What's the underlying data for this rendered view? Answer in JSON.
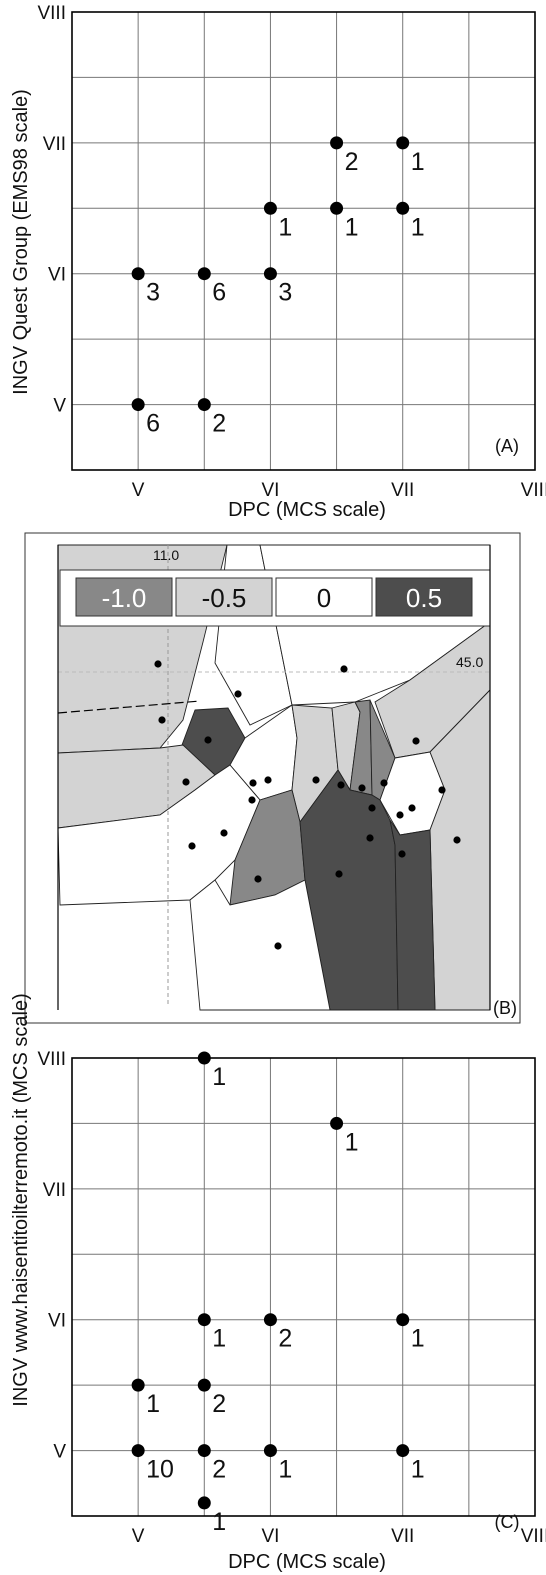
{
  "chart_data": [
    {
      "id": "A",
      "type": "scatter",
      "panel_label": "(A)",
      "xlabel": "DPC (MCS scale)",
      "ylabel": "INGV Quest Group (EMS98 scale)",
      "xlim": [
        4.5,
        8.0
      ],
      "ylim": [
        4.5,
        8.0
      ],
      "xticks": [
        {
          "v": 5,
          "label": "V"
        },
        {
          "v": 6,
          "label": "VI"
        },
        {
          "v": 7,
          "label": "VII"
        },
        {
          "v": 8,
          "label": "VIII"
        }
      ],
      "yticks": [
        {
          "v": 5,
          "label": "V"
        },
        {
          "v": 6,
          "label": "VI"
        },
        {
          "v": 7,
          "label": "VII"
        },
        {
          "v": 8,
          "label": "VIII"
        }
      ],
      "grid": true,
      "points": [
        {
          "x": 5.0,
          "y": 5.0,
          "n": "6"
        },
        {
          "x": 5.5,
          "y": 5.0,
          "n": "2"
        },
        {
          "x": 5.0,
          "y": 6.0,
          "n": "3"
        },
        {
          "x": 5.5,
          "y": 6.0,
          "n": "6"
        },
        {
          "x": 6.0,
          "y": 6.0,
          "n": "3"
        },
        {
          "x": 6.0,
          "y": 6.5,
          "n": "1"
        },
        {
          "x": 6.5,
          "y": 6.5,
          "n": "1"
        },
        {
          "x": 7.0,
          "y": 6.5,
          "n": "1"
        },
        {
          "x": 6.5,
          "y": 7.0,
          "n": "2"
        },
        {
          "x": 7.0,
          "y": 7.0,
          "n": "1"
        }
      ]
    },
    {
      "id": "B",
      "type": "map",
      "panel_label": "(B)",
      "legend": [
        {
          "label": "-1.0",
          "color": "#888888",
          "text_color": "#ffffff"
        },
        {
          "label": "-0.5",
          "color": "#d3d3d3",
          "text_color": "#111111"
        },
        {
          "label": "0",
          "color": "#ffffff",
          "text_color": "#111111"
        },
        {
          "label": "0.5",
          "color": "#4d4d4d",
          "text_color": "#ffffff"
        }
      ],
      "graticule_labels": {
        "longitude": "11.0",
        "latitude": "45.0"
      },
      "colors": {
        "light": "#d3d3d3",
        "dark": "#4d4d4d",
        "mid": "#888888",
        "white": "#ffffff"
      }
    },
    {
      "id": "C",
      "type": "scatter",
      "panel_label": "(C)",
      "xlabel": "DPC (MCS scale)",
      "ylabel": "INGV www.haisentitoilterremoto.it (MCS scale)",
      "xlim": [
        4.5,
        8.0
      ],
      "ylim": [
        4.5,
        8.0
      ],
      "xticks": [
        {
          "v": 5,
          "label": "V"
        },
        {
          "v": 6,
          "label": "VI"
        },
        {
          "v": 7,
          "label": "VII"
        },
        {
          "v": 8,
          "label": "VIII"
        }
      ],
      "yticks": [
        {
          "v": 5,
          "label": "V"
        },
        {
          "v": 6,
          "label": "VI"
        },
        {
          "v": 7,
          "label": "VII"
        },
        {
          "v": 8,
          "label": "VIII"
        }
      ],
      "grid": true,
      "points": [
        {
          "x": 5.5,
          "y": 8.0,
          "n": "1"
        },
        {
          "x": 6.5,
          "y": 7.5,
          "n": "1"
        },
        {
          "x": 5.5,
          "y": 6.0,
          "n": "1"
        },
        {
          "x": 6.0,
          "y": 6.0,
          "n": "2"
        },
        {
          "x": 7.0,
          "y": 6.0,
          "n": "1"
        },
        {
          "x": 5.0,
          "y": 5.5,
          "n": "1"
        },
        {
          "x": 5.5,
          "y": 5.5,
          "n": "2"
        },
        {
          "x": 5.0,
          "y": 5.0,
          "n": "10"
        },
        {
          "x": 5.5,
          "y": 5.0,
          "n": "2"
        },
        {
          "x": 6.0,
          "y": 5.0,
          "n": "1"
        },
        {
          "x": 7.0,
          "y": 5.0,
          "n": "1"
        },
        {
          "x": 5.5,
          "y": 4.6,
          "n": "1"
        }
      ]
    }
  ]
}
